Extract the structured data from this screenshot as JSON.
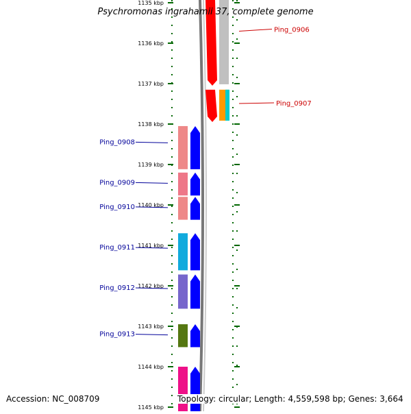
{
  "title": "Psychromonas ingrahamii 37, complete genome",
  "accession_label": "Accession: NC_008709",
  "summary_label": "Topology: circular; Length: 4,559,598 bp; Genes: 3,664",
  "axis": {
    "unit": "kbp",
    "ticks": [
      1135,
      1136,
      1137,
      1138,
      1139,
      1140,
      1141,
      1142,
      1143,
      1144,
      1145
    ],
    "tick_labels": [
      "1135 kbp",
      "1136 kbp",
      "1137 kbp",
      "1138 kbp",
      "1139 kbp",
      "1140 kbp",
      "1141 kbp",
      "1142 kbp",
      "1143 kbp",
      "1144 kbp",
      "1145 kbp"
    ]
  },
  "colors": {
    "forward_label": "#cc0000",
    "reverse_label": "#000099",
    "backbone": "#888888",
    "tick": "#006600",
    "forward_arrow": "#ff0000",
    "reverse_arrow": "#0000ff"
  },
  "forward_genes": [
    {
      "label": "Ping_0906",
      "start": 1134.9,
      "end": 1137.05,
      "color": "#ff0000",
      "companion": "#c0c0c0"
    },
    {
      "label": "Ping_0907",
      "start": 1137.15,
      "end": 1137.95,
      "color": "#ff0000",
      "companion": "#ff9900",
      "companion2": "#00cccc"
    }
  ],
  "reverse_genes": [
    {
      "label": "Ping_0908",
      "start": 1138.05,
      "end": 1139.15,
      "color": "#ee8888"
    },
    {
      "label": "Ping_0909",
      "start": 1139.2,
      "end": 1139.8,
      "color": "#ee7788"
    },
    {
      "label": "Ping_0910",
      "start": 1139.8,
      "end": 1140.4,
      "color": "#ee8888"
    },
    {
      "label": "Ping_0911",
      "start": 1140.7,
      "end": 1141.65,
      "color": "#11aadd"
    },
    {
      "label": "Ping_0912",
      "start": 1141.72,
      "end": 1142.6,
      "color": "#7766cc"
    },
    {
      "label": "Ping_0913",
      "start": 1142.95,
      "end": 1143.55,
      "color": "#557711"
    },
    {
      "label": "",
      "start": 1144.0,
      "end": 1145.2,
      "color": "#ee1188"
    }
  ]
}
